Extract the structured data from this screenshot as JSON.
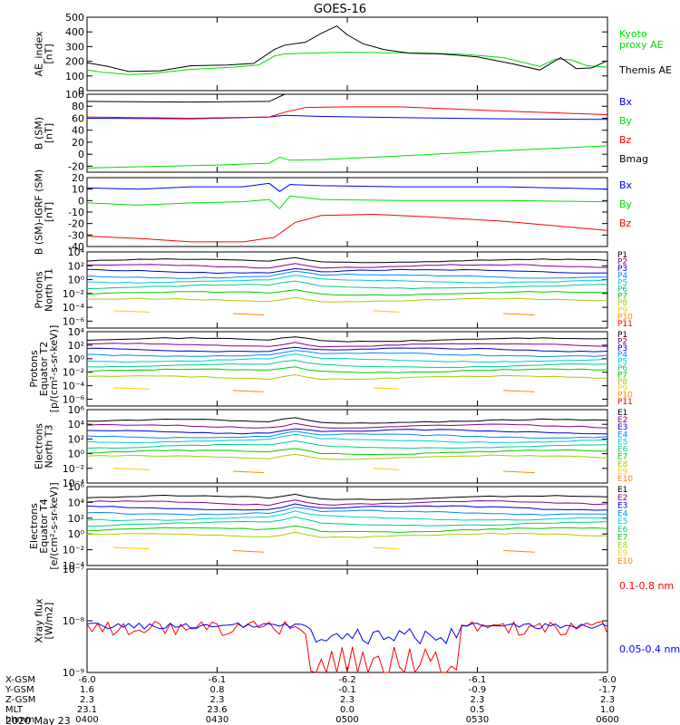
{
  "title": "GOES-16",
  "date": "2020 May 23",
  "colors": {
    "black": "#000000",
    "green": "#00dd00",
    "blue": "#0000ff",
    "red": "#ff0000",
    "P": [
      "#000000",
      "#880088",
      "#0000cc",
      "#0088ff",
      "#00cccc",
      "#00cc88",
      "#00cc00",
      "#aacc00",
      "#ffcc00",
      "#ff8800",
      "#ee0000",
      "#990000"
    ]
  },
  "chart_data": [
    {
      "id": "ae",
      "type": "line",
      "ylabel": [
        "AE_index",
        "[nT]"
      ],
      "ylim": [
        0,
        500
      ],
      "yticks": [
        "0",
        "100",
        "200",
        "300",
        "400",
        "500"
      ],
      "ytickvals": [
        0,
        100,
        200,
        300,
        400,
        500
      ],
      "series": [
        {
          "name": "Kyoto proxy AE",
          "label": [
            "Kyoto",
            "proxy AE"
          ],
          "color": "#00dd00",
          "x": [
            0,
            0.03,
            0.08,
            0.12,
            0.2,
            0.28,
            0.33,
            0.36,
            0.38,
            0.42,
            0.5,
            0.58,
            0.65,
            0.72,
            0.8,
            0.87,
            0.9,
            0.93,
            0.96,
            1.0
          ],
          "y": [
            140,
            125,
            110,
            115,
            145,
            160,
            175,
            235,
            250,
            255,
            262,
            258,
            256,
            248,
            225,
            165,
            215,
            210,
            170,
            160
          ]
        },
        {
          "name": "Themis AE",
          "label": [
            "Themis AE"
          ],
          "color": "#000000",
          "x": [
            0,
            0.04,
            0.08,
            0.14,
            0.2,
            0.27,
            0.32,
            0.36,
            0.38,
            0.42,
            0.45,
            0.48,
            0.5,
            0.53,
            0.57,
            0.62,
            0.68,
            0.75,
            0.82,
            0.87,
            0.91,
            0.94,
            0.97,
            1.0
          ],
          "y": [
            190,
            165,
            130,
            135,
            170,
            175,
            185,
            280,
            310,
            330,
            390,
            440,
            380,
            320,
            280,
            255,
            250,
            230,
            180,
            140,
            225,
            150,
            155,
            205
          ]
        }
      ]
    },
    {
      "id": "b",
      "type": "line",
      "ylabel": [
        "B (SM)",
        "[nT]"
      ],
      "ylim": [
        -30,
        100
      ],
      "yticks": [
        "-20",
        "0",
        "20",
        "40",
        "60",
        "80",
        "100"
      ],
      "ytickvals": [
        -20,
        0,
        20,
        40,
        60,
        80,
        100
      ],
      "series": [
        {
          "name": "Bx",
          "label": [
            "Bx"
          ],
          "color": "#0000ff",
          "x": [
            0,
            0.2,
            0.35,
            0.38,
            0.45,
            0.6,
            0.8,
            1.0
          ],
          "y": [
            60,
            59,
            62,
            65,
            63,
            61,
            59,
            58
          ]
        },
        {
          "name": "By",
          "label": [
            "By"
          ],
          "color": "#00dd00",
          "x": [
            0,
            0.1,
            0.25,
            0.35,
            0.37,
            0.39,
            0.45,
            0.6,
            0.8,
            1.0
          ],
          "y": [
            -23,
            -21,
            -18,
            -15,
            -5,
            -10,
            -9,
            -3,
            6,
            14
          ]
        },
        {
          "name": "Bz",
          "label": [
            "Bz"
          ],
          "color": "#ff0000",
          "x": [
            0,
            0.2,
            0.35,
            0.38,
            0.42,
            0.5,
            0.6,
            0.8,
            1.0
          ],
          "y": [
            62,
            60,
            62,
            70,
            78,
            79,
            79,
            72,
            66
          ]
        },
        {
          "name": "Bmag",
          "label": [
            "Bmag"
          ],
          "color": "#000000",
          "x": [
            0,
            0.2,
            0.35,
            0.38,
            1.0
          ],
          "y": [
            88,
            87,
            88,
            100,
            100
          ]
        }
      ]
    },
    {
      "id": "bigrf",
      "type": "line",
      "ylabel": [
        "B (SM)-IGRF (SM)",
        "[nT]"
      ],
      "ylim": [
        -40,
        20
      ],
      "yticks": [
        "-40",
        "-30",
        "-20",
        "-10",
        "0",
        "10",
        "20"
      ],
      "ytickvals": [
        -40,
        -30,
        -20,
        -10,
        0,
        10,
        20
      ],
      "series": [
        {
          "name": "Bx",
          "label": [
            "Bx"
          ],
          "color": "#0000ff",
          "x": [
            0,
            0.1,
            0.2,
            0.3,
            0.35,
            0.37,
            0.39,
            0.45,
            0.6,
            0.8,
            1.0
          ],
          "y": [
            11,
            10,
            12,
            12,
            15,
            8,
            14,
            13,
            12,
            12,
            10
          ]
        },
        {
          "name": "By",
          "label": [
            "By"
          ],
          "color": "#00dd00",
          "x": [
            0,
            0.1,
            0.2,
            0.3,
            0.35,
            0.37,
            0.39,
            0.45,
            0.6,
            0.8,
            1.0
          ],
          "y": [
            -2,
            -4,
            -2,
            -1,
            1,
            -7,
            4,
            1,
            0,
            0,
            -1
          ]
        },
        {
          "name": "Bz",
          "label": [
            "Bz"
          ],
          "color": "#ff0000",
          "x": [
            0,
            0.1,
            0.2,
            0.3,
            0.36,
            0.4,
            0.45,
            0.55,
            0.65,
            0.8,
            1.0
          ],
          "y": [
            -31,
            -33,
            -36,
            -36,
            -32,
            -19,
            -13,
            -12,
            -14,
            -18,
            -26
          ]
        }
      ]
    },
    {
      "id": "pn",
      "type": "line",
      "log": true,
      "ylabel": [
        "Protons",
        "North T1"
      ],
      "ylim": [
        -7,
        4
      ],
      "yticks": [
        "10⁻⁶",
        "10⁻⁴",
        "10⁻²",
        "10⁰",
        "10²",
        "10⁴"
      ],
      "ytickvals": [
        -6,
        -4,
        -2,
        0,
        2,
        4
      ],
      "labels": [
        "P1",
        "P2",
        "P3",
        "P4",
        "P5",
        "P6",
        "P7",
        "P8",
        "P9",
        "P10",
        "P11"
      ],
      "series_levels": [
        2.7,
        1.9,
        1.2,
        0.5,
        -0.2,
        -1.0,
        -2.0,
        -3.0
      ]
    },
    {
      "id": "pe",
      "type": "line",
      "log": true,
      "ylabel": [
        "Protons",
        "Equator T2",
        "[p/(cm²-s-sr-keV)]"
      ],
      "ylim": [
        -7,
        4
      ],
      "yticks": [
        "10⁻⁶",
        "10⁻⁴",
        "10⁻²",
        "10⁰",
        "10²",
        "10⁴"
      ],
      "ytickvals": [
        -6,
        -4,
        -2,
        0,
        2,
        4
      ],
      "labels": [
        "P1",
        "P2",
        "P3",
        "P4",
        "P5",
        "P6",
        "P7",
        "P8",
        "P9",
        "P10",
        "P11"
      ],
      "series_levels": [
        2.8,
        2.0,
        1.3,
        0.6,
        -0.2,
        -1.0,
        -1.8,
        -2.8
      ]
    },
    {
      "id": "en",
      "type": "line",
      "log": true,
      "ylabel": [
        "Electrons",
        "North T3"
      ],
      "ylim": [
        -4,
        6
      ],
      "yticks": [
        "10⁻⁴",
        "10⁻²",
        "10⁰",
        "10²",
        "10⁴",
        "10⁶"
      ],
      "ytickvals": [
        -4,
        -2,
        0,
        2,
        4,
        6
      ],
      "labels": [
        "E1",
        "E2",
        "E3",
        "E4",
        "E5",
        "E6",
        "E7",
        "E8",
        "E9",
        "E10"
      ],
      "series_levels": [
        4.4,
        3.7,
        3.0,
        2.4,
        1.8,
        1.0,
        0.2,
        -0.5
      ]
    },
    {
      "id": "ee",
      "type": "line",
      "log": true,
      "ylabel": [
        "Electrons",
        "Equator T4",
        "[e/(cm²-s-sr-keV)]"
      ],
      "ylim": [
        -4,
        6
      ],
      "yticks": [
        "10⁻⁴",
        "10⁻²",
        "10⁰",
        "10²",
        "10⁴",
        "10⁶"
      ],
      "ytickvals": [
        -4,
        -2,
        0,
        2,
        4,
        6
      ],
      "labels": [
        "E1",
        "E2",
        "E3",
        "E4",
        "E5",
        "E6",
        "E7",
        "E8",
        "E9",
        "E10"
      ],
      "series_levels": [
        4.6,
        3.9,
        3.3,
        2.7,
        2.0,
        1.3,
        0.5,
        -0.2
      ]
    },
    {
      "id": "xray",
      "type": "line",
      "log": true,
      "ylabel": [
        "Xray flux",
        "[W/m2]"
      ],
      "ylim": [
        -9,
        -7
      ],
      "yticks": [
        "10⁻⁹",
        "10⁻⁸",
        "10⁻⁷"
      ],
      "ytickvals": [
        -9,
        -8,
        -7
      ],
      "series": [
        {
          "name": "0.1-0.8 nm",
          "label": [
            "0.1-0.8 nm"
          ],
          "color": "#ff0000"
        },
        {
          "name": "0.05-0.4 nm",
          "label": [
            "0.05-0.4 nm"
          ],
          "color": "#0000ff"
        }
      ]
    }
  ],
  "xaxis": {
    "rows": [
      "X-GSM",
      "Y-GSM",
      "Z-GSM",
      "MLT",
      "hhmm"
    ],
    "columns": [
      [
        "-6.0",
        "1.6",
        "2.3",
        "23.1",
        "0400"
      ],
      [
        "-6.1",
        "0.8",
        "2.3",
        "23.6",
        "0430"
      ],
      [
        "-6.2",
        "-0.1",
        "2.3",
        "0.0",
        "0500"
      ],
      [
        "-6.1",
        "-0.9",
        "2.3",
        "0.5",
        "0530"
      ],
      [
        "-6.0",
        "-1.7",
        "2.3",
        "1.0",
        "0600"
      ]
    ]
  }
}
